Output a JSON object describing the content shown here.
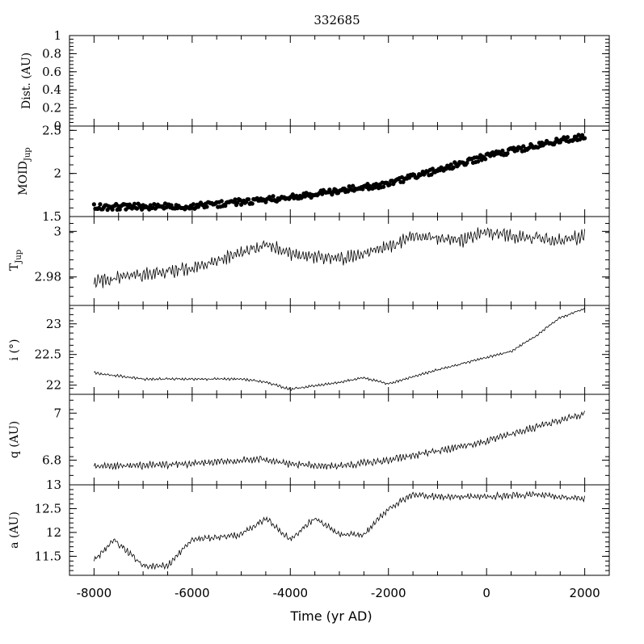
{
  "chart_data": {
    "type": "line",
    "title": "332685",
    "xlabel": "Time (yr AD)",
    "xlim": [
      -8500,
      2500
    ],
    "xticks": [
      -8000,
      -6000,
      -4000,
      -2000,
      0,
      2000
    ],
    "xtick_labels": [
      "-8000",
      "-6000",
      "-4000",
      "-2000",
      "0",
      "2000"
    ],
    "panels": [
      {
        "id": "dist",
        "type": "line",
        "ylabel": "Dist. (AU)",
        "ylim": [
          0,
          1
        ],
        "yticks": [
          0,
          0.2,
          0.4,
          0.6,
          0.8,
          1
        ],
        "ytick_labels": [
          "0",
          "0.2",
          "0.4",
          "0.6",
          "0.8",
          "1"
        ],
        "series": []
      },
      {
        "id": "moid",
        "type": "scatter",
        "ylabel_main": "MOID",
        "ylabel_sub": "Jup",
        "ylim": [
          1.5,
          2.55
        ],
        "yticks": [
          1.5,
          2,
          2.5
        ],
        "ytick_labels": [
          "1.5",
          "2",
          "2.5"
        ],
        "trend": {
          "x": [
            -8000,
            -6000,
            -4000,
            -2000,
            0,
            2000
          ],
          "y": [
            1.61,
            1.62,
            1.72,
            1.88,
            2.2,
            2.44
          ]
        },
        "amplitude": 0.035
      },
      {
        "id": "tjup",
        "type": "line",
        "ylabel_main": "T",
        "ylabel_sub": "Jup",
        "ylim": [
          2.9675,
          3.0065
        ],
        "yticks": [
          2.98,
          3
        ],
        "ytick_labels": [
          "2.98",
          "3"
        ],
        "trend": {
          "x": [
            -8000,
            -7000,
            -6000,
            -4500,
            -4000,
            -3000,
            -2000,
            -1500,
            -500,
            0,
            500,
            1000,
            1500,
            2000
          ],
          "y": [
            2.978,
            2.981,
            2.984,
            2.994,
            2.99,
            2.988,
            2.993,
            2.998,
            2.996,
            3.0,
            2.998,
            2.997,
            2.996,
            2.998
          ]
        },
        "amplitude": 0.0035
      },
      {
        "id": "incl",
        "type": "line",
        "ylabel": "i (°)",
        "ylim": [
          21.85,
          23.3
        ],
        "yticks": [
          22,
          22.5,
          23
        ],
        "ytick_labels": [
          "22",
          "22.5",
          "23"
        ],
        "trend": {
          "x": [
            -8000,
            -7000,
            -6000,
            -5000,
            -4500,
            -4000,
            -3000,
            -2500,
            -2000,
            -1000,
            0,
            500,
            1000,
            1500,
            2000
          ],
          "y": [
            22.2,
            22.1,
            22.1,
            22.1,
            22.05,
            21.93,
            22.05,
            22.12,
            22.02,
            22.25,
            22.45,
            22.55,
            22.8,
            23.1,
            23.25
          ]
        },
        "amplitude": 0.025
      },
      {
        "id": "q",
        "type": "line",
        "ylabel": "q (AU)",
        "ylim": [
          6.695,
          7.08
        ],
        "yticks": [
          6.8,
          7
        ],
        "ytick_labels": [
          "6.8",
          "7"
        ],
        "trend": {
          "x": [
            -8000,
            -6000,
            -4500,
            -4000,
            -3000,
            -2000,
            0,
            1000,
            2000
          ],
          "y": [
            6.77,
            6.785,
            6.805,
            6.78,
            6.775,
            6.8,
            6.88,
            6.94,
            7.0
          ]
        },
        "amplitude": 0.018
      },
      {
        "id": "a",
        "type": "line",
        "ylabel": "a (AU)",
        "ylim": [
          11.1,
          13.0
        ],
        "yticks": [
          11.5,
          12,
          12.5,
          13
        ],
        "ytick_labels": [
          "11.5",
          "12",
          "12.5",
          "13"
        ],
        "trend": {
          "x": [
            -8000,
            -7600,
            -7000,
            -6500,
            -6000,
            -5000,
            -4500,
            -4000,
            -3500,
            -3000,
            -2500,
            -2000,
            -1500,
            -1000,
            0,
            1000,
            2000
          ],
          "y": [
            11.4,
            11.85,
            11.3,
            11.3,
            11.85,
            11.95,
            12.3,
            11.85,
            12.3,
            11.95,
            11.95,
            12.5,
            12.8,
            12.75,
            12.75,
            12.8,
            12.7
          ]
        },
        "amplitude": 0.08
      }
    ]
  }
}
